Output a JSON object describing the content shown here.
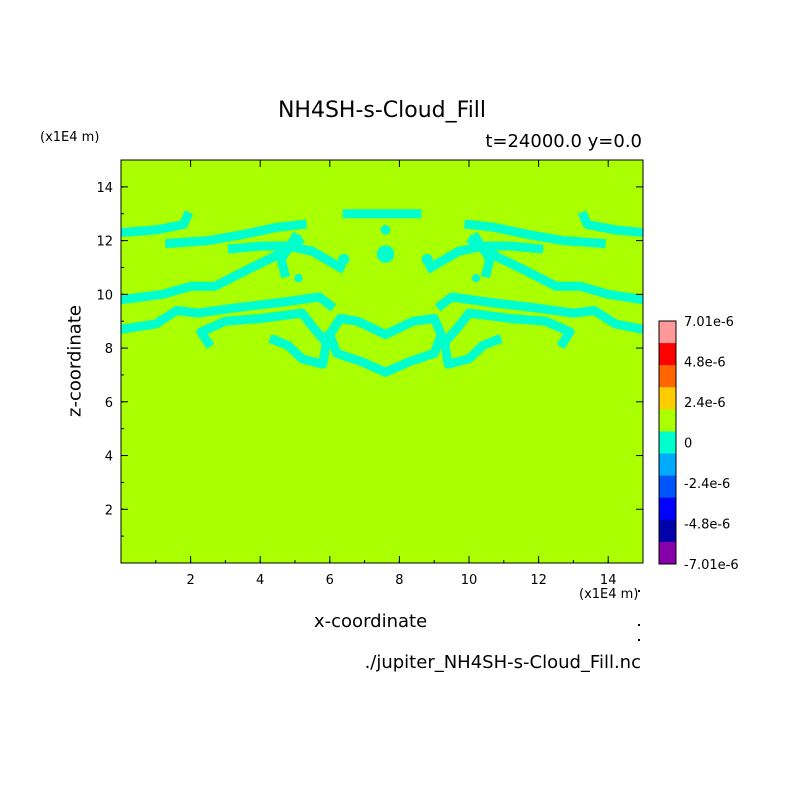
{
  "chart_data": {
    "type": "heatmap",
    "title": "NH4SH-s-Cloud_Fill",
    "subtitle": "t=24000.0 y=0.0",
    "xlabel": "x-coordinate",
    "ylabel": "z-coordinate",
    "x_unit": "(x1E4 m)",
    "y_unit": "(x1E4 m)",
    "filename": "./jupiter_NH4SH-s-Cloud_Fill.nc",
    "xlim": [
      0,
      15
    ],
    "ylim": [
      0,
      15
    ],
    "x_ticks": [
      "2",
      "4",
      "6",
      "8",
      "10",
      "12",
      "14"
    ],
    "y_ticks": [
      "2",
      "4",
      "6",
      "8",
      "10",
      "12",
      "14"
    ],
    "background_value": 0,
    "background_color": "#aaff00",
    "feature_color": "#00ffcc",
    "colorbar": {
      "labels": [
        "7.01e-6",
        "4.8e-6",
        "2.4e-6",
        "0",
        "-2.4e-6",
        "-4.8e-6",
        "-7.01e-6"
      ],
      "colors": [
        "#ff9999",
        "#ff0000",
        "#ff6600",
        "#ffcc00",
        "#aaff00",
        "#00ffcc",
        "#00aaff",
        "#0055ff",
        "#0000ff",
        "#0000aa",
        "#8800aa"
      ]
    },
    "features": [
      {
        "name": "band-top-center",
        "points": [
          [
            6.5,
            13.0
          ],
          [
            8.5,
            13.0
          ]
        ]
      },
      {
        "name": "upper-left-arc",
        "points": [
          [
            0,
            12.3
          ],
          [
            1.0,
            12.4
          ],
          [
            1.8,
            12.6
          ],
          [
            1.9,
            12.9
          ]
        ]
      },
      {
        "name": "upper-left-branch",
        "points": [
          [
            1.4,
            11.9
          ],
          [
            2.5,
            12.0
          ],
          [
            3.4,
            12.2
          ],
          [
            4.5,
            12.5
          ],
          [
            5.2,
            12.6
          ]
        ]
      },
      {
        "name": "upper-left-inner",
        "points": [
          [
            3.2,
            11.7
          ],
          [
            4.0,
            11.8
          ],
          [
            4.8,
            11.8
          ],
          [
            5.5,
            11.6
          ],
          [
            6.3,
            11.0
          ]
        ]
      },
      {
        "name": "left-ribbon",
        "points": [
          [
            0,
            9.8
          ],
          [
            1.2,
            10.0
          ],
          [
            2.0,
            10.3
          ],
          [
            2.7,
            10.3
          ],
          [
            3.6,
            10.9
          ],
          [
            4.4,
            11.4
          ],
          [
            5.1,
            12.0
          ]
        ]
      },
      {
        "name": "left-drape",
        "points": [
          [
            0,
            8.7
          ],
          [
            1.0,
            8.9
          ],
          [
            1.6,
            9.4
          ],
          [
            2.2,
            9.3
          ],
          [
            3.3,
            9.5
          ],
          [
            4.6,
            9.7
          ],
          [
            5.7,
            9.9
          ],
          [
            6.0,
            9.6
          ]
        ]
      },
      {
        "name": "left-loop",
        "points": [
          [
            2.5,
            8.2
          ],
          [
            2.3,
            8.6
          ],
          [
            3.0,
            9.0
          ],
          [
            4.0,
            9.1
          ],
          [
            5.2,
            9.3
          ],
          [
            5.5,
            8.8
          ],
          [
            5.9,
            8.2
          ],
          [
            5.8,
            7.4
          ],
          [
            5.2,
            7.6
          ],
          [
            4.8,
            8.1
          ],
          [
            4.4,
            8.3
          ]
        ]
      },
      {
        "name": "center-heart",
        "points": [
          [
            6.0,
            8.5
          ],
          [
            6.3,
            9.1
          ],
          [
            6.8,
            9.0
          ],
          [
            7.6,
            8.5
          ],
          [
            8.4,
            9.0
          ],
          [
            9.0,
            9.1
          ],
          [
            9.2,
            8.5
          ],
          [
            9.0,
            7.8
          ],
          [
            8.3,
            7.5
          ],
          [
            7.6,
            7.1
          ],
          [
            6.9,
            7.5
          ],
          [
            6.2,
            7.8
          ],
          [
            6.0,
            8.5
          ]
        ]
      },
      {
        "name": "right-loop",
        "points": [
          [
            12.7,
            8.2
          ],
          [
            12.9,
            8.6
          ],
          [
            12.2,
            9.0
          ],
          [
            11.2,
            9.1
          ],
          [
            10.0,
            9.3
          ],
          [
            9.7,
            8.8
          ],
          [
            9.3,
            8.2
          ],
          [
            9.4,
            7.4
          ],
          [
            10.0,
            7.6
          ],
          [
            10.4,
            8.1
          ],
          [
            10.8,
            8.3
          ]
        ]
      },
      {
        "name": "right-drape",
        "points": [
          [
            15,
            8.7
          ],
          [
            14.2,
            8.9
          ],
          [
            13.6,
            9.4
          ],
          [
            13.0,
            9.3
          ],
          [
            11.9,
            9.5
          ],
          [
            10.6,
            9.7
          ],
          [
            9.5,
            9.9
          ],
          [
            9.2,
            9.6
          ]
        ]
      },
      {
        "name": "right-ribbon",
        "points": [
          [
            15,
            9.8
          ],
          [
            14.0,
            10.0
          ],
          [
            13.2,
            10.3
          ],
          [
            12.5,
            10.3
          ],
          [
            11.6,
            10.9
          ],
          [
            10.8,
            11.4
          ],
          [
            10.1,
            12.0
          ]
        ]
      },
      {
        "name": "upper-right-inner",
        "points": [
          [
            12.0,
            11.7
          ],
          [
            11.2,
            11.8
          ],
          [
            10.4,
            11.8
          ],
          [
            9.7,
            11.6
          ],
          [
            8.9,
            11.0
          ]
        ]
      },
      {
        "name": "upper-right-branch",
        "points": [
          [
            13.8,
            11.9
          ],
          [
            12.7,
            12.0
          ],
          [
            11.8,
            12.2
          ],
          [
            10.7,
            12.5
          ],
          [
            10.0,
            12.6
          ]
        ]
      },
      {
        "name": "upper-right-arc",
        "points": [
          [
            15,
            12.3
          ],
          [
            14.2,
            12.4
          ],
          [
            13.4,
            12.6
          ],
          [
            13.3,
            12.9
          ]
        ]
      },
      {
        "name": "left-stem",
        "points": [
          [
            5.0,
            12.1
          ],
          [
            4.6,
            11.3
          ],
          [
            4.7,
            10.8
          ]
        ]
      },
      {
        "name": "right-stem",
        "points": [
          [
            10.2,
            12.1
          ],
          [
            10.6,
            11.3
          ],
          [
            10.5,
            10.8
          ]
        ]
      }
    ],
    "blobs": [
      {
        "name": "center-diamond",
        "cx": 7.6,
        "cy": 11.5,
        "r": 0.25
      },
      {
        "name": "dot-left",
        "cx": 6.4,
        "cy": 11.3,
        "r": 0.16
      },
      {
        "name": "dot-right",
        "cx": 8.8,
        "cy": 11.3,
        "r": 0.16
      },
      {
        "name": "dot-top-center",
        "cx": 7.6,
        "cy": 12.4,
        "r": 0.14
      },
      {
        "name": "dot-left-low",
        "cx": 5.1,
        "cy": 10.6,
        "r": 0.12
      },
      {
        "name": "dot-right-low",
        "cx": 10.2,
        "cy": 10.6,
        "r": 0.12
      }
    ]
  }
}
